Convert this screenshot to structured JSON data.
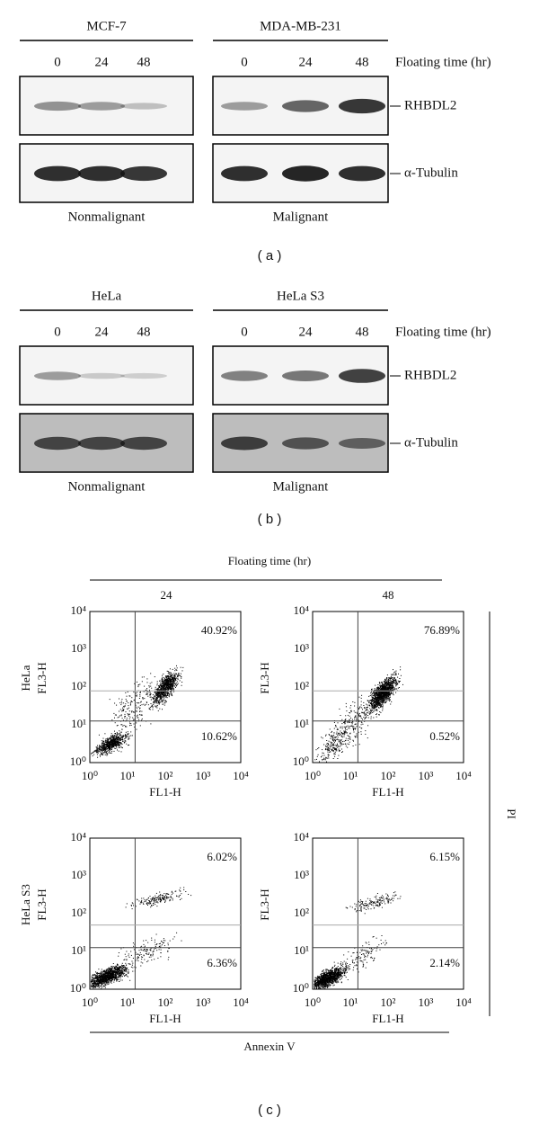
{
  "panel_a": {
    "label": "( a )",
    "time_label": "Floating time (hr)",
    "proteins": [
      "RHBDL2",
      "α-Tubulin"
    ],
    "groups": [
      {
        "name": "MCF-7",
        "times": [
          "0",
          "24",
          "48"
        ],
        "condition": "Nonmalignant"
      },
      {
        "name": "MDA-MB-231",
        "times": [
          "0",
          "24",
          "48"
        ],
        "condition": "Malignant"
      }
    ]
  },
  "panel_b": {
    "label": "( b )",
    "time_label": "Floating time (hr)",
    "proteins": [
      "RHBDL2",
      "α-Tubulin"
    ],
    "groups": [
      {
        "name": "HeLa",
        "times": [
          "0",
          "24",
          "48"
        ],
        "condition": "Nonmalignant"
      },
      {
        "name": "HeLa S3",
        "times": [
          "0",
          "24",
          "48"
        ],
        "condition": "Malignant"
      }
    ]
  },
  "panel_c": {
    "label": "( c )",
    "header": "Floating time (hr)",
    "columns": [
      "24",
      "48"
    ],
    "rows": [
      "HeLa",
      "HeLa S3"
    ],
    "x_label": "FL1-H",
    "y_label": "FL3-H",
    "side_label": "PI",
    "bottom_label": "Annexin V",
    "ticks": [
      "10⁰",
      "10¹",
      "10²",
      "10³",
      "10⁴"
    ],
    "plots": [
      {
        "upper": "40.92%",
        "lower": "10.62%"
      },
      {
        "upper": "76.89%",
        "lower": "0.52%"
      },
      {
        "upper": "6.02%",
        "lower": "6.36%"
      },
      {
        "upper": "6.15%",
        "lower": "2.14%"
      }
    ]
  }
}
